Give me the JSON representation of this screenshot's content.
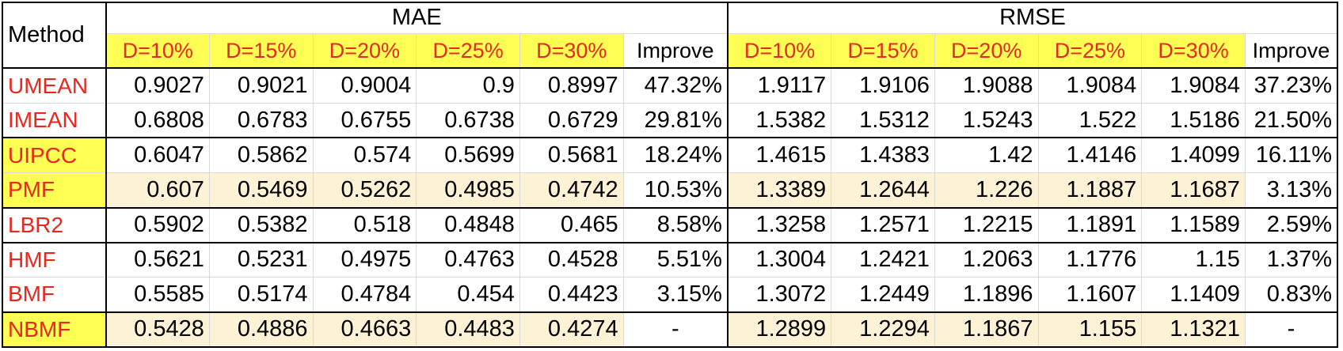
{
  "table": {
    "method_header": "Method",
    "groups": [
      "MAE",
      "RMSE"
    ],
    "subheaders": [
      "D=10%",
      "D=15%",
      "D=20%",
      "D=25%",
      "D=30%",
      "Improve"
    ],
    "rows": [
      {
        "name": "UMEAN",
        "mae": [
          "0.9027",
          "0.9021",
          "0.9004",
          "0.9",
          "0.8997",
          "47.32%"
        ],
        "rmse": [
          "1.9117",
          "1.9106",
          "1.9088",
          "1.9084",
          "1.9084",
          "37.23%"
        ]
      },
      {
        "name": "IMEAN",
        "mae": [
          "0.6808",
          "0.6783",
          "0.6755",
          "0.6738",
          "0.6729",
          "29.81%"
        ],
        "rmse": [
          "1.5382",
          "1.5312",
          "1.5243",
          "1.522",
          "1.5186",
          "21.50%"
        ]
      },
      {
        "name": "UIPCC",
        "mae": [
          "0.6047",
          "0.5862",
          "0.574",
          "0.5699",
          "0.5681",
          "18.24%"
        ],
        "rmse": [
          "1.4615",
          "1.4383",
          "1.42",
          "1.4146",
          "1.4099",
          "16.11%"
        ]
      },
      {
        "name": "PMF",
        "mae": [
          "0.607",
          "0.5469",
          "0.5262",
          "0.4985",
          "0.4742",
          "10.53%"
        ],
        "rmse": [
          "1.3389",
          "1.2644",
          "1.226",
          "1.1887",
          "1.1687",
          "3.13%"
        ]
      },
      {
        "name": "LBR2",
        "mae": [
          "0.5902",
          "0.5382",
          "0.518",
          "0.4848",
          "0.465",
          "8.58%"
        ],
        "rmse": [
          "1.3258",
          "1.2571",
          "1.2215",
          "1.1891",
          "1.1589",
          "2.59%"
        ]
      },
      {
        "name": "HMF",
        "mae": [
          "0.5621",
          "0.5231",
          "0.4975",
          "0.4763",
          "0.4528",
          "5.51%"
        ],
        "rmse": [
          "1.3004",
          "1.2421",
          "1.2063",
          "1.1776",
          "1.15",
          "1.37%"
        ]
      },
      {
        "name": "BMF",
        "mae": [
          "0.5585",
          "0.5174",
          "0.4784",
          "0.454",
          "0.4423",
          "3.15%"
        ],
        "rmse": [
          "1.3072",
          "1.2449",
          "1.1896",
          "1.1607",
          "1.1409",
          "0.83%"
        ]
      },
      {
        "name": "NBMF",
        "mae": [
          "0.5428",
          "0.4886",
          "0.4663",
          "0.4483",
          "0.4274",
          "-"
        ],
        "rmse": [
          "1.2899",
          "1.2294",
          "1.1867",
          "1.155",
          "1.1321",
          "-"
        ]
      }
    ]
  },
  "colors": {
    "header_fill": "#ffff54",
    "highlight_row_fill": "#fdf1d6",
    "method_text": "#e8281f"
  }
}
